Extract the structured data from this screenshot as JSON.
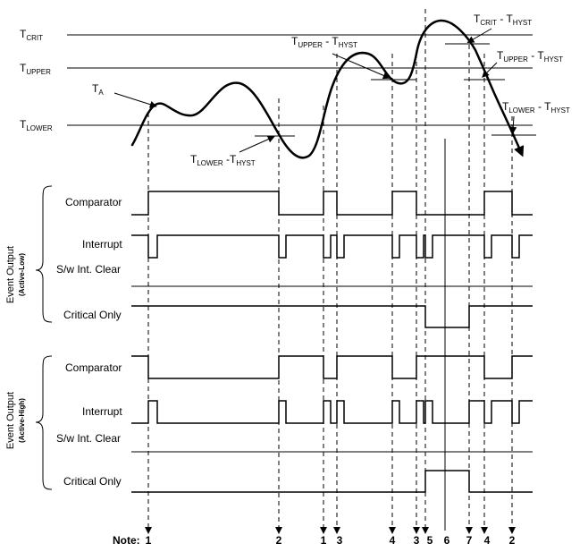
{
  "thresholds": {
    "crit": {
      "main": "T",
      "sub": "CRIT"
    },
    "upper": {
      "main": "T",
      "sub": "UPPER"
    },
    "lower": {
      "main": "T",
      "sub": "LOWER"
    },
    "ta": {
      "main": "T",
      "sub": "A"
    }
  },
  "hyst_labels": {
    "lower_hyst": {
      "a": "T",
      "a_sub": "LOWER",
      "sep": " -T",
      "b_sub": "HYST"
    },
    "upper_hyst": {
      "a": "T",
      "a_sub": "UPPER",
      "sep": " - T",
      "b_sub": "HYST"
    },
    "crit_hyst": {
      "a": "T",
      "a_sub": "CRIT",
      "sep": " - T",
      "b_sub": "HYST"
    },
    "upper_hyst_r": {
      "a": "T",
      "a_sub": "UPPER",
      "sep": " - T",
      "b_sub": "HYST"
    },
    "lower_hyst_r": {
      "a": "T",
      "a_sub": "LOWER",
      "sep": " - T",
      "b_sub": "HYST"
    }
  },
  "groups": {
    "active_low": {
      "title": "Event Output",
      "sub": "(Active-Low)"
    },
    "active_high": {
      "title": "Event Output",
      "sub": "(Active-High)"
    }
  },
  "signals": {
    "comparator": "Comparator",
    "interrupt": "Interrupt",
    "sw_clear": "S/w Int. Clear",
    "critical": "Critical Only"
  },
  "notes": {
    "prefix": "Note:",
    "items": [
      "1",
      "2",
      "1",
      "3",
      "4",
      "3",
      "5",
      "6",
      "7",
      "4",
      "2"
    ]
  },
  "colors": {
    "ink": "#000000",
    "background": "#ffffff"
  }
}
